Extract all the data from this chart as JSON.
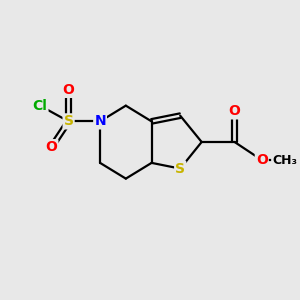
{
  "background_color": "#e8e8e8",
  "atom_colors": {
    "C": "#000000",
    "S": "#c8b400",
    "N": "#0000ff",
    "O": "#ff0000",
    "Cl": "#00aa00"
  },
  "bond_color": "#000000",
  "font_size": 10,
  "figsize": [
    3.0,
    3.0
  ],
  "dpi": 100,
  "xlim": [
    0,
    10
  ],
  "ylim": [
    0,
    10
  ]
}
